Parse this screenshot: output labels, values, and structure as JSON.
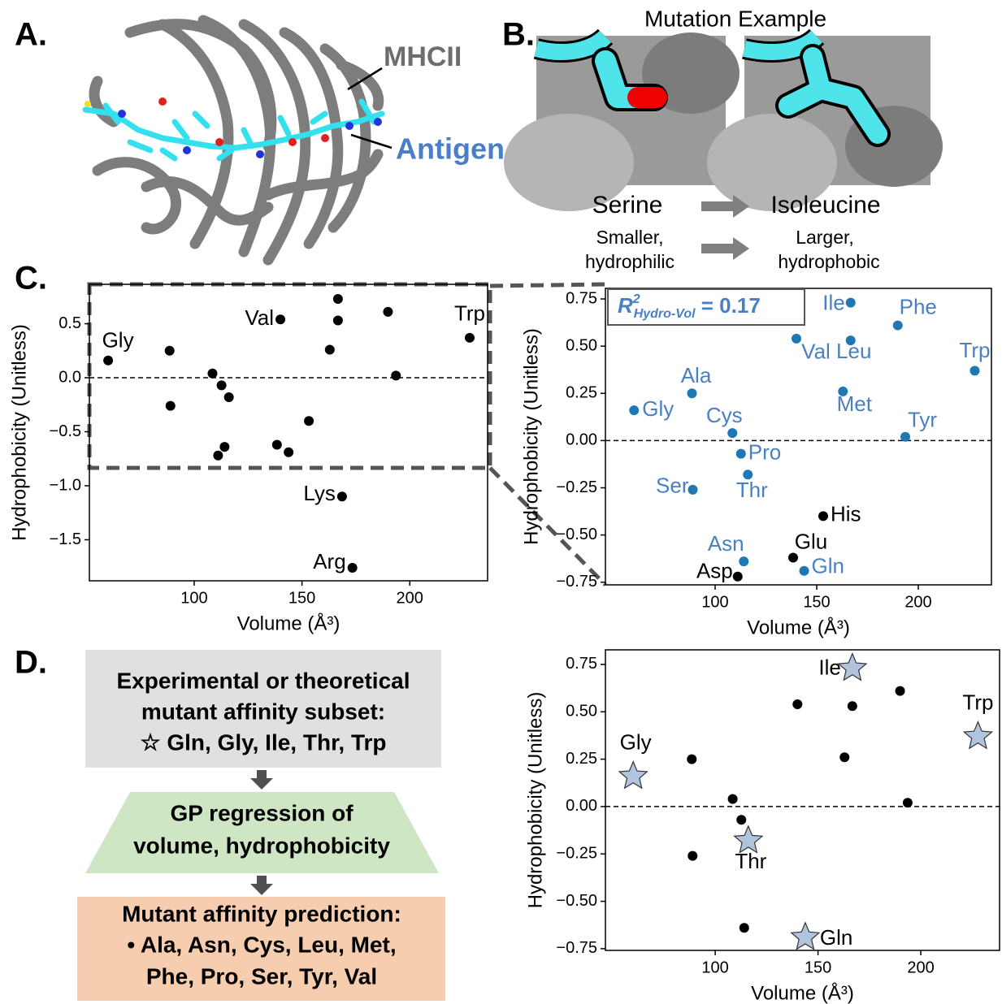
{
  "panel_a": {
    "letter": "A.",
    "protein": "MHCII",
    "peptide": "Antigen"
  },
  "panel_b": {
    "letter": "B.",
    "title": "Mutation Example",
    "from": {
      "name": "Serine",
      "desc": [
        "Smaller,",
        "hydrophilic"
      ]
    },
    "to": {
      "name": "Isoleucine",
      "desc": [
        "Larger,",
        "hydrophobic"
      ]
    }
  },
  "panel_c": {
    "letter": "C."
  },
  "panel_d": {
    "letter": "D.",
    "steps": [
      [
        "Experimental or theoretical",
        "mutant affinity subset:",
        "☆ Gln, Gly, Ile, Thr, Trp"
      ],
      [
        "GP regression of",
        "volume, hydrophobicity"
      ],
      [
        "Mutant affinity prediction:",
        "• Ala, Asn, Cys, Leu, Met,",
        "Phe, Pro, Ser, Tyr, Val"
      ]
    ]
  },
  "chart_data": [
    {
      "type": "scatter",
      "x_label": "Volume (Å³)",
      "y_label": "Hydrophobicity (Unitless)",
      "xlim": [
        51.4,
        236.1
      ],
      "ylim": [
        -1.88,
        0.865
      ],
      "xticks": [
        100,
        150,
        200
      ],
      "yticks": [
        {
          "value": 0.5,
          "label": "0.5"
        },
        {
          "value": 0,
          "label": "0.0"
        },
        {
          "value": -0.5,
          "label": "−0.5"
        },
        {
          "value": -1,
          "label": "−1.0"
        },
        {
          "value": -1.5,
          "label": "−1.5"
        }
      ],
      "zero_line": true,
      "series": [
        {
          "color": "#000000",
          "marker": "circle",
          "label_color": "#000000",
          "x": [
            60.1,
            88.6,
            89.0,
            108.5,
            112.7,
            116.1,
            111.1,
            114.1,
            138.4,
            143.8,
            153.2,
            140.0,
            166.7,
            166.7,
            162.9,
            189.9,
            193.6,
            227.8,
            168.6,
            173.4
          ],
          "values": [
            0.16,
            0.25,
            -0.26,
            0.04,
            -0.07,
            -0.18,
            -0.72,
            -0.64,
            -0.62,
            -0.69,
            -0.4,
            0.54,
            0.73,
            0.53,
            0.26,
            0.61,
            0.02,
            0.37,
            -1.1,
            -1.76
          ],
          "point_labels": [
            "Gly",
            null,
            null,
            null,
            null,
            null,
            null,
            null,
            null,
            null,
            null,
            "Val",
            null,
            null,
            null,
            null,
            null,
            "Trp",
            "Lys",
            "Arg"
          ]
        }
      ]
    },
    {
      "type": "scatter",
      "x_label": "Volume (Å³)",
      "y_label": "Hydrophobicity (Unitless)",
      "xlim": [
        46,
        236
      ],
      "ylim": [
        -0.764,
        0.806
      ],
      "xticks": [
        100,
        150,
        200
      ],
      "yticks": [
        {
          "value": 0.75,
          "label": "0.75"
        },
        {
          "value": 0.5,
          "label": "0.50"
        },
        {
          "value": 0.25,
          "label": "0.25"
        },
        {
          "value": 0,
          "label": "0.00"
        },
        {
          "value": -0.25,
          "label": "−0.25"
        },
        {
          "value": -0.5,
          "label": "−0.50"
        },
        {
          "value": -0.75,
          "label": "−0.75"
        }
      ],
      "zero_line": true,
      "annotation": {
        "symbol": "R",
        "superscript": "2",
        "subscript": "Hydro-Vol",
        "text": " = 0.17"
      },
      "series": [
        {
          "color": "#1f77b4",
          "marker": "circle",
          "label_color": "#4a7fc1",
          "x": [
            60.1,
            88.6,
            89.0,
            108.5,
            112.7,
            116.1,
            114.1,
            143.8,
            140.0,
            166.7,
            166.7,
            162.9,
            189.9,
            193.6,
            227.8
          ],
          "values": [
            0.16,
            0.25,
            -0.26,
            0.04,
            -0.07,
            -0.18,
            -0.64,
            -0.69,
            0.54,
            0.73,
            0.53,
            0.26,
            0.61,
            0.02,
            0.37
          ],
          "point_labels": [
            "Gly",
            "Ala",
            "Ser",
            "Cys",
            "Pro",
            "Thr",
            "Asn",
            "Gln",
            "Val",
            "Ile",
            "Leu",
            "Met",
            "Phe",
            "Tyr",
            "Trp"
          ]
        },
        {
          "color": "#000000",
          "marker": "circle",
          "label_color": "#000000",
          "x": [
            111.1,
            138.4,
            153.2
          ],
          "values": [
            -0.72,
            -0.62,
            -0.4
          ],
          "point_labels": [
            "Asp",
            "Glu",
            "His"
          ]
        }
      ]
    },
    {
      "type": "scatter",
      "x_label": "Volume (Å³)",
      "y_label": "Hydrophobicity (Unitless)",
      "xlim": [
        46.6,
        238.3
      ],
      "ylim": [
        -0.759,
        0.827
      ],
      "xticks": [
        100,
        150,
        200
      ],
      "yticks": [
        {
          "value": 0.75,
          "label": "0.75"
        },
        {
          "value": 0.5,
          "label": "0.50"
        },
        {
          "value": 0.25,
          "label": "0.25"
        },
        {
          "value": 0,
          "label": "0.00"
        },
        {
          "value": -0.25,
          "label": "−0.25"
        },
        {
          "value": -0.5,
          "label": "−0.50"
        },
        {
          "value": -0.75,
          "label": "−0.75"
        }
      ],
      "zero_line": true,
      "series": [
        {
          "color": "#b0c4de",
          "marker": "star",
          "label_color": "#000000",
          "x": [
            60.1,
            116.1,
            143.8,
            166.7,
            227.8
          ],
          "values": [
            0.16,
            -0.18,
            -0.69,
            0.73,
            0.37
          ],
          "point_labels": [
            "Gly",
            "Thr",
            "Gln",
            "Ile",
            "Trp"
          ]
        },
        {
          "color": "#000000",
          "marker": "circle",
          "x": [
            88.6,
            114.1,
            108.5,
            166.7,
            162.9,
            189.9,
            112.7,
            89.0,
            193.6,
            140.0
          ],
          "values": [
            0.25,
            -0.64,
            0.04,
            0.53,
            0.26,
            0.61,
            -0.07,
            -0.26,
            0.02,
            0.54
          ]
        }
      ]
    }
  ]
}
